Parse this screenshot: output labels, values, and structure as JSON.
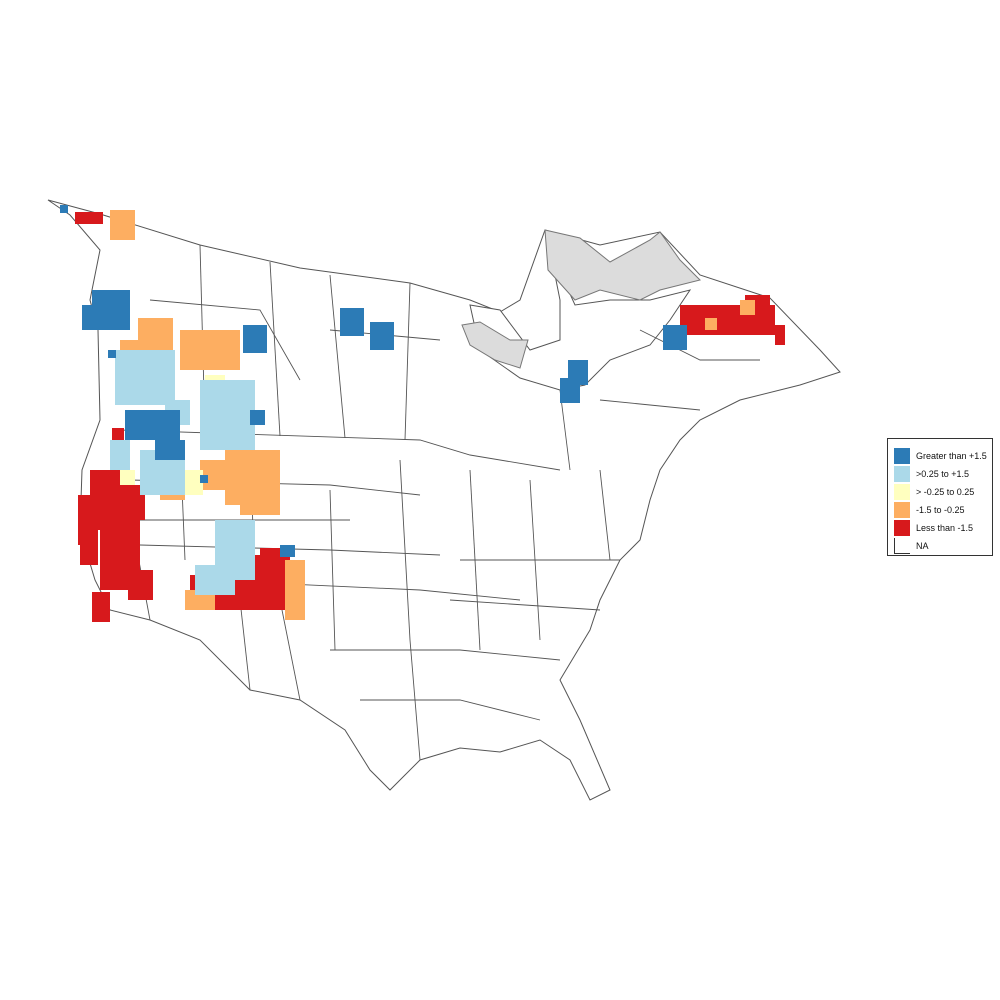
{
  "legend": {
    "items": [
      {
        "label": "Greater than +1.5",
        "color": "#2c7bb6"
      },
      {
        "label": ">0.25 to +1.5",
        "color": "#abd9e9"
      },
      {
        "label": "> -0.25 to 0.25",
        "color": "#ffffbf"
      },
      {
        "label": "-1.5 to -0.25",
        "color": "#fdae61"
      },
      {
        "label": "Less than -1.5",
        "color": "#d7191c"
      },
      {
        "label": "NA",
        "color": "#ffffff"
      }
    ]
  },
  "colors": {
    "boundary": "#555555",
    "land": "#ffffff",
    "no_data_region": "#dcdcdc"
  }
}
